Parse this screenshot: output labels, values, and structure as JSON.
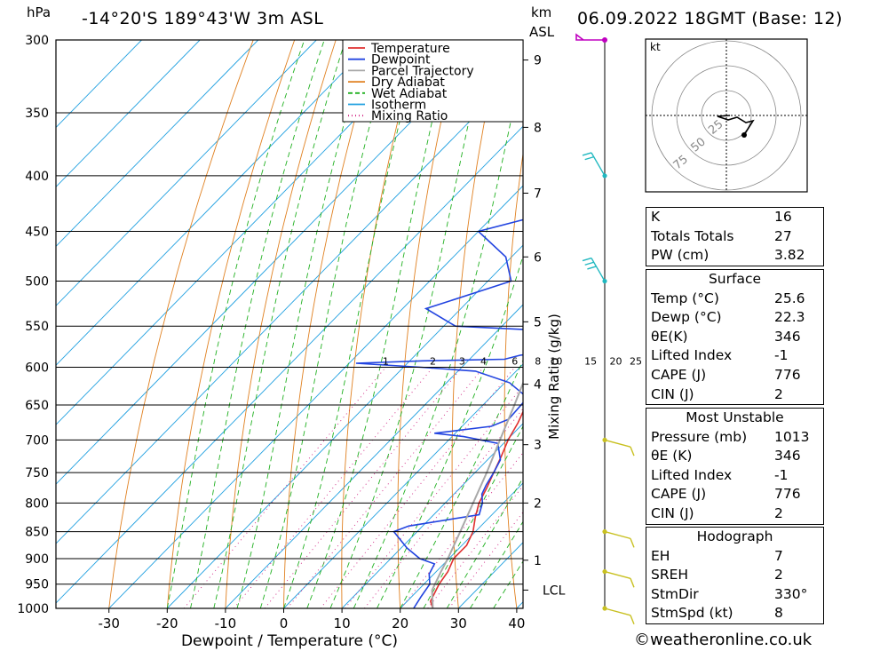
{
  "header": {
    "location": "-14°20'S  189°43'W  3m  ASL",
    "datetime": "06.09.2022  18GMT  (Base: 12)",
    "pressure_unit": "hPa",
    "km_unit": "km",
    "asl_unit": "ASL"
  },
  "chart_data": {
    "type": "line",
    "title": "Skew-T log-P sounding",
    "xlabel": "Dewpoint / Temperature (°C)",
    "ylabel": "hPa",
    "y2label": "km ASL",
    "mixing_ratio_label": "Mixing Ratio (g/kg)",
    "xlim": [
      -40,
      40
    ],
    "ylim": [
      1000,
      300
    ],
    "x_ticks": [
      -30,
      -20,
      -10,
      0,
      10,
      20,
      30,
      40
    ],
    "pressure_ticks": [
      300,
      350,
      400,
      450,
      500,
      550,
      600,
      650,
      700,
      750,
      800,
      850,
      900,
      950,
      1000
    ],
    "km_ticks": [
      {
        "label": "1",
        "p": 903
      },
      {
        "label": "2",
        "p": 800
      },
      {
        "label": "3",
        "p": 707
      },
      {
        "label": "4",
        "p": 622
      },
      {
        "label": "5",
        "p": 545
      },
      {
        "label": "6",
        "p": 475
      },
      {
        "label": "7",
        "p": 415
      },
      {
        "label": "8",
        "p": 361
      },
      {
        "label": "9",
        "p": 313
      },
      {
        "label": "LCL",
        "p": 962
      }
    ],
    "mixing_ratio_labels": [
      "1",
      "2",
      "3",
      "4",
      "6",
      "8",
      "10",
      "15",
      "20",
      "25"
    ],
    "mixing_ratio_values": [
      1,
      2,
      3,
      4,
      6,
      8,
      10,
      15,
      20,
      25
    ],
    "legend": [
      "Temperature",
      "Dewpoint",
      "Parcel Trajectory",
      "Dry Adiabat",
      "Wet Adiabat",
      "Isotherm",
      "Mixing Ratio"
    ],
    "series": [
      {
        "name": "Temperature",
        "color": "#e03030",
        "points": [
          [
            1000,
            25.6
          ],
          [
            985,
            24.0
          ],
          [
            950,
            22.6
          ],
          [
            925,
            22.0
          ],
          [
            900,
            20.8
          ],
          [
            875,
            20.8
          ],
          [
            850,
            19.6
          ],
          [
            825,
            17.6
          ],
          [
            800,
            15.8
          ],
          [
            775,
            14.6
          ],
          [
            750,
            13.2
          ],
          [
            725,
            11.8
          ],
          [
            700,
            10.2
          ],
          [
            675,
            9.0
          ],
          [
            650,
            7.4
          ],
          [
            625,
            6.0
          ],
          [
            600,
            4.4
          ],
          [
            575,
            2.4
          ],
          [
            560,
            1.8
          ],
          [
            550,
            1.2
          ],
          [
            530,
            -1.0
          ],
          [
            500,
            -4.0
          ],
          [
            475,
            -6.0
          ],
          [
            450,
            -8.8
          ],
          [
            425,
            -12.0
          ],
          [
            400,
            -16.0
          ],
          [
            375,
            -20.0
          ],
          [
            350,
            -24.0
          ],
          [
            325,
            -28.0
          ],
          [
            300,
            -33.0
          ]
        ]
      },
      {
        "name": "Dewpoint",
        "color": "#2244e0",
        "points": [
          [
            1000,
            22.3
          ],
          [
            975,
            21.6
          ],
          [
            950,
            21.0
          ],
          [
            930,
            19.2
          ],
          [
            910,
            18.4
          ],
          [
            900,
            15.0
          ],
          [
            880,
            11.0
          ],
          [
            850,
            6.0
          ],
          [
            840,
            7.6
          ],
          [
            820,
            17.8
          ],
          [
            800,
            16.4
          ],
          [
            785,
            14.8
          ],
          [
            770,
            14.0
          ],
          [
            750,
            13.2
          ],
          [
            730,
            12.2
          ],
          [
            705,
            9.0
          ],
          [
            695,
            2.0
          ],
          [
            690,
            -3.6
          ],
          [
            680,
            5.0
          ],
          [
            670,
            6.8
          ],
          [
            640,
            6.4
          ],
          [
            620,
            0.8
          ],
          [
            605,
            -7.0
          ],
          [
            600,
            -17.0
          ],
          [
            595,
            -28.8
          ],
          [
            592,
            -17.8
          ],
          [
            590,
            -4.0
          ],
          [
            585,
            -2.0
          ],
          [
            580,
            2.0
          ],
          [
            572,
            6.4
          ],
          [
            565,
            6.8
          ],
          [
            557,
            4.0
          ],
          [
            550,
            -18.0
          ],
          [
            530,
            -26.0
          ],
          [
            500,
            -16.0
          ],
          [
            475,
            -21.0
          ],
          [
            450,
            -30.0
          ],
          [
            420,
            -14.0
          ],
          [
            400,
            -4.0
          ],
          [
            385,
            -8.0
          ],
          [
            360,
            -8.0
          ],
          [
            340,
            -9.0
          ],
          [
            320,
            -10.0
          ],
          [
            300,
            -12.0
          ]
        ]
      },
      {
        "name": "Parcel Trajectory",
        "color": "#a8a8a8",
        "points": [
          [
            1000,
            25.6
          ],
          [
            962,
            22.4
          ],
          [
            925,
            20.8
          ],
          [
            900,
            19.8
          ],
          [
            850,
            17.4
          ],
          [
            800,
            14.8
          ],
          [
            750,
            12.0
          ],
          [
            700,
            8.8
          ],
          [
            650,
            5.4
          ],
          [
            600,
            1.6
          ],
          [
            550,
            -2.8
          ],
          [
            500,
            -7.8
          ],
          [
            450,
            -13.6
          ],
          [
            400,
            -20.4
          ],
          [
            370,
            -25.6
          ]
        ]
      }
    ],
    "wind_barbs": [
      {
        "p": 300,
        "flag": true
      },
      {
        "p": 400,
        "barbs": 2
      },
      {
        "p": 500,
        "barbs": 3
      },
      {
        "p": 700,
        "barbs": 1
      },
      {
        "p": 850,
        "barbs": 1
      },
      {
        "p": 925,
        "barbs": 1
      },
      {
        "p": 1000,
        "barbs": 1
      }
    ],
    "hodograph": {
      "unit_label": "kt",
      "ring_labels": [
        "25",
        "50",
        "75"
      ],
      "storm_dir": 330,
      "storm_speed": 8
    }
  },
  "indices": {
    "basic": [
      {
        "label": "K",
        "value": "16"
      },
      {
        "label": "Totals Totals",
        "value": "27"
      },
      {
        "label": "PW (cm)",
        "value": "3.82"
      }
    ],
    "surface": {
      "title": "Surface",
      "rows": [
        {
          "label": "Temp (°C)",
          "value": "25.6"
        },
        {
          "label": "Dewp (°C)",
          "value": "22.3"
        },
        {
          "label": "θE(K)",
          "value": "346"
        },
        {
          "label": "Lifted Index",
          "value": "-1"
        },
        {
          "label": "CAPE (J)",
          "value": "776"
        },
        {
          "label": "CIN (J)",
          "value": "2"
        }
      ]
    },
    "most_unstable": {
      "title": "Most Unstable",
      "rows": [
        {
          "label": "Pressure (mb)",
          "value": "1013"
        },
        {
          "label": "θE (K)",
          "value": "346"
        },
        {
          "label": "Lifted Index",
          "value": "-1"
        },
        {
          "label": "CAPE (J)",
          "value": "776"
        },
        {
          "label": "CIN (J)",
          "value": "2"
        }
      ]
    },
    "hodograph": {
      "title": "Hodograph",
      "rows": [
        {
          "label": "EH",
          "value": "7"
        },
        {
          "label": "SREH",
          "value": "2"
        },
        {
          "label": "StmDir",
          "value": "330°"
        },
        {
          "label": "StmSpd (kt)",
          "value": "8"
        }
      ]
    }
  },
  "footer": {
    "text": "©weatheronline.co.uk"
  },
  "colors": {
    "temperature": "#e03030",
    "dewpoint": "#2244e0",
    "parcel": "#a8a8a8",
    "dry_adiabat": "#e08020",
    "wet_adiabat": "#20b020",
    "isotherm": "#20a0e0",
    "mixing_ratio": "#d02080",
    "wind": "#20b8c0",
    "wind_low": "#c8c020"
  }
}
